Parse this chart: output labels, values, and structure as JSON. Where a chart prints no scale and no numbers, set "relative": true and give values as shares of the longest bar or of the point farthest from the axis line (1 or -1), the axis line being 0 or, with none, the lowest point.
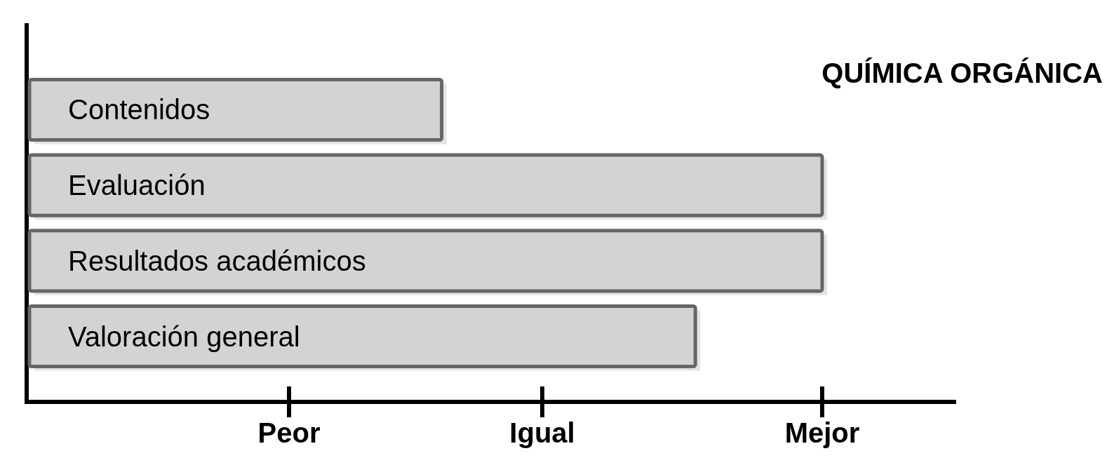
{
  "chart_data": {
    "type": "bar",
    "orientation": "horizontal",
    "title": "QUÍMICA ORGÁNICA",
    "relative": true,
    "categories": [
      "Contenidos",
      "Evaluación",
      "Resultados académicos",
      "Valoración general"
    ],
    "values": [
      0.52,
      1,
      1,
      0.84
    ],
    "color": "#d3d3d3",
    "annotations": [
      "Peor",
      "Igual",
      "Mejor"
    ]
  }
}
